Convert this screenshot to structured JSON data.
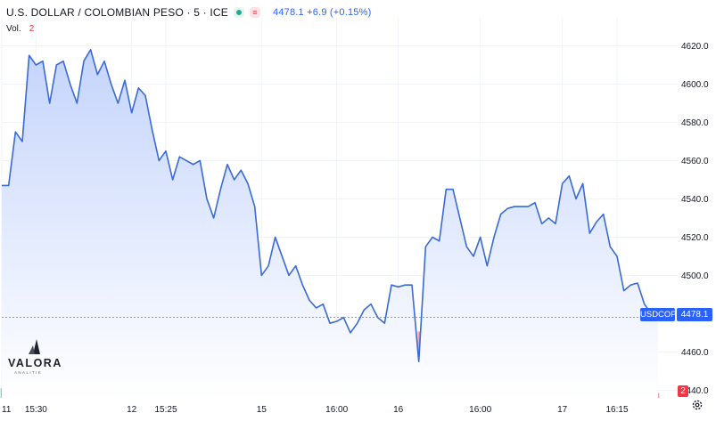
{
  "header": {
    "title": "U.S. DOLLAR / COLOMBIAN PESO · 5 · ICE",
    "last_price": "4478.1",
    "change": "+6.9 (+0.15%)",
    "status_icon": "market-open-dot-icon",
    "tag_icon": "notes-icon"
  },
  "volume": {
    "label": "Vol.",
    "value": "2"
  },
  "badges": {
    "symbol": "USDCOP",
    "last": "4478.1",
    "volume": "2"
  },
  "logo": {
    "name": "VALORA",
    "sub": "ANALITIK"
  },
  "colors": {
    "line": "#3a6ad4",
    "area_top": "#c4d4fb",
    "area_bottom": "#ffffff",
    "volume_up": "#7fd3c2",
    "volume_down": "#f4a3ab",
    "accent": "#2962ff",
    "negative": "#f23645"
  },
  "chart_data": {
    "type": "area",
    "title": "U.S. DOLLAR / COLOMBIAN PESO · 5 · ICE",
    "xlabel": "",
    "ylabel": "",
    "ylim": [
      4436,
      4630
    ],
    "y_ticks": [
      {
        "v": 4620,
        "label": "4620.0"
      },
      {
        "v": 4600,
        "label": "4600.0"
      },
      {
        "v": 4580,
        "label": "4580.0"
      },
      {
        "v": 4560,
        "label": "4560.0"
      },
      {
        "v": 4540,
        "label": "4540.0"
      },
      {
        "v": 4520,
        "label": "4520.0"
      },
      {
        "v": 4500,
        "label": "4500.0"
      },
      {
        "v": 4480,
        "label": "4480.0"
      },
      {
        "v": 4460,
        "label": "4460.0"
      },
      {
        "v": 4440,
        "label": "4440.0"
      }
    ],
    "x_ticks": [
      {
        "label": "11",
        "at": 0
      },
      {
        "label": "15:30",
        "at": 5
      },
      {
        "label": "12",
        "at": 19
      },
      {
        "label": "15:25",
        "at": 24
      },
      {
        "label": "15",
        "at": 38
      },
      {
        "label": "16:00",
        "at": 49
      },
      {
        "label": "16",
        "at": 58
      },
      {
        "label": "16:00",
        "at": 70
      },
      {
        "label": "17",
        "at": 82
      },
      {
        "label": "16:15",
        "at": 90
      }
    ],
    "last_value": 4478.1,
    "grid": true,
    "legend": "none",
    "series": [
      {
        "values": [
          4547,
          4547,
          4575,
          4570,
          4615,
          4610,
          4612,
          4590,
          4610,
          4612,
          4600,
          4590,
          4612,
          4618,
          4605,
          4612,
          4600,
          4590,
          4602,
          4585,
          4598,
          4594,
          4576,
          4560,
          4565,
          4550,
          4562,
          4560,
          4558,
          4560,
          4540,
          4530,
          4545,
          4558,
          4550,
          4555,
          4548,
          4536,
          4500,
          4505,
          4520,
          4510,
          4500,
          4505,
          4495,
          4487,
          4483,
          4485,
          4475,
          4476,
          4478,
          4470,
          4475,
          4482,
          4485,
          4478,
          4475,
          4495,
          4494,
          4495,
          4495,
          4455,
          4515,
          4520,
          4518,
          4545,
          4545,
          4530,
          4515,
          4510,
          4520,
          4505,
          4520,
          4532,
          4535,
          4536,
          4536,
          4536,
          4538,
          4527,
          4530,
          4527,
          4548,
          4552,
          4540,
          4548,
          4522,
          4528,
          4532,
          4515,
          4510,
          4492,
          4495,
          4496,
          4485,
          4480,
          4478.1
        ]
      }
    ],
    "volume": {
      "values": [
        4,
        6,
        3,
        9,
        5,
        7,
        4,
        10,
        3,
        5,
        13,
        18,
        5,
        7,
        14,
        4,
        6,
        9,
        11,
        8,
        4,
        5,
        7,
        16,
        6,
        3,
        20,
        6,
        4,
        15,
        17,
        5,
        9,
        18,
        6,
        4,
        4,
        27,
        30,
        17,
        5,
        10,
        7,
        4,
        6,
        4,
        5,
        3,
        4,
        6,
        4,
        7,
        3,
        6,
        5,
        4,
        6,
        8,
        5,
        5,
        17,
        28,
        12,
        7,
        14,
        6,
        4,
        5,
        10,
        8,
        11,
        9,
        6,
        7,
        3,
        5,
        4,
        3,
        4,
        6,
        7,
        5,
        4,
        6,
        12,
        15,
        9,
        20,
        25,
        22,
        18,
        29,
        16,
        14,
        10,
        8,
        2
      ],
      "up": [
        1,
        0,
        1,
        1,
        0,
        0,
        1,
        1,
        0,
        1,
        0,
        1,
        1,
        0,
        1,
        0,
        1,
        0,
        1,
        0,
        0,
        1,
        1,
        0,
        1,
        0,
        1,
        1,
        0,
        1,
        0,
        1,
        1,
        0,
        1,
        0,
        1,
        0,
        1,
        0,
        1,
        1,
        0,
        0,
        1,
        0,
        1,
        0,
        1,
        0,
        1,
        1,
        0,
        1,
        0,
        1,
        0,
        1,
        1,
        0,
        1,
        0,
        1,
        1,
        0,
        0,
        1,
        0,
        1,
        1,
        0,
        1,
        0,
        1,
        0,
        1,
        1,
        0,
        1,
        0,
        1,
        0,
        1,
        1,
        0,
        1,
        0,
        1,
        0,
        1,
        1,
        0,
        1,
        0,
        1,
        0,
        0
      ]
    }
  }
}
